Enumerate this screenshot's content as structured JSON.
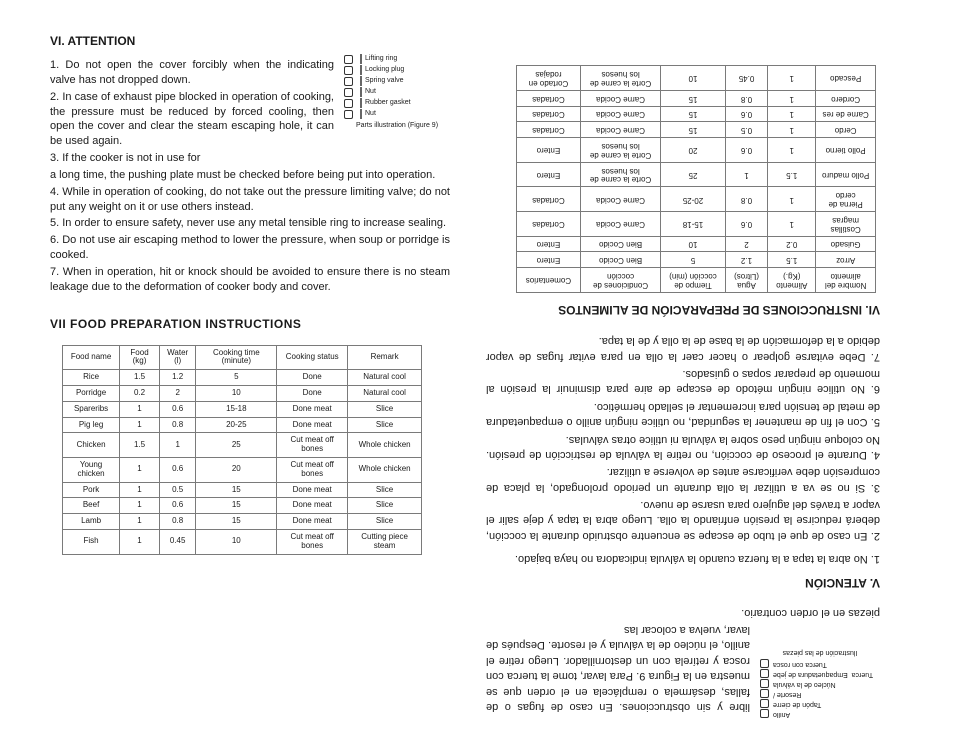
{
  "left": {
    "h6": "VI. ATTENTION",
    "p1": "1. Do not open the cover forcibly when the indicating valve has not dropped down.",
    "p2": "2. In case of exhaust pipe blocked in operation of cooking, the pressure must be reduced by forced cooling, then open the cover and clear the steam escaping hole, it can be used again.",
    "p3a": "3. If   the   cooker   is   not   in   use   for",
    "p3b": "a    long    time,    the pushing plate must be checked before being put into operation.",
    "p4": "4. While in operation of cooking, do not take out the pressure limiting valve; do not put any weight on it or use others instead.",
    "p5": "5. In order to ensure safety, never use any metal tensible ring to increase sealing.",
    "p6": "6. Do not use air escaping method to lower the pressure, when soup or porridge is cooked.",
    "p7": "7. When in operation, hit or knock should be avoided to ensure there is no steam leakage due to the deformation of cooker body and cover.",
    "h7": "VII       FOOD PREPARATION INSTRUCTIONS",
    "fig": {
      "l1": "Lifting ring",
      "l2": "Locking plug",
      "l3": "Spring valve",
      "l4": "Nut",
      "l5": "Rubber gasket",
      "l6": "Nut",
      "cap": "Parts illustration\n(Figure 9)"
    },
    "table": {
      "headers": [
        "Food name",
        "Food (kg)",
        "Water (l)",
        "Cooking time (minute)",
        "Cooking status",
        "Remark"
      ],
      "rows": [
        [
          "Rice",
          "1.5",
          "1.2",
          "5",
          "Done",
          "Natural cool"
        ],
        [
          "Porridge",
          "0.2",
          "2",
          "10",
          "Done",
          "Natural cool"
        ],
        [
          "Spareribs",
          "1",
          "0.6",
          "15-18",
          "Done meat",
          "Slice"
        ],
        [
          "Pig leg",
          "1",
          "0.8",
          "20-25",
          "Done meat",
          "Slice"
        ],
        [
          "Chicken",
          "1.5",
          "1",
          "25",
          "Cut meat off bones",
          "Whole chicken"
        ],
        [
          "Young chicken",
          "1",
          "0.6",
          "20",
          "Cut meat off bones",
          "Whole chicken"
        ],
        [
          "Pork",
          "1",
          "0.5",
          "15",
          "Done meat",
          "Slice"
        ],
        [
          "Beef",
          "1",
          "0.6",
          "15",
          "Done meat",
          "Slice"
        ],
        [
          "Lamb",
          "1",
          "0.8",
          "15",
          "Done meat",
          "Slice"
        ],
        [
          "Fish",
          "1",
          "0.45",
          "10",
          "Cut meat off bones",
          "Cutting piece steam"
        ]
      ]
    }
  },
  "right": {
    "topA": "libre y sin obstrucciones.  En caso de fugas o de fallas, desármela o remplácela en el orden que se muestra en la Figura 9. Para lavar, tome la tuerca con rosca y retírela con un destornillador. Luego retire el anillo, el núcleo de la válvula y el resorte. Después de lavar, vuelva a colocar las",
    "topB": "piezas en el orden contrario.",
    "fig": {
      "l1": "Anillo",
      "l2": "Tapón de cierre",
      "l3": "Resorte  /",
      "l4": "Núcleo de la válvula",
      "l5a": "Tuerca",
      "l5b": "Empaquetadura de jebe",
      "l6": "Tuerca con rosca",
      "cap": "Ilustración de las piezas"
    },
    "h5": "V. ATENCIÓN",
    "p1": "1. No abra la tapa a la fuerza cuando la válvula indicadora no haya bajado.",
    "p2": "2. En caso de que el tubo de escape se encuentre obstruido durante la cocción, deberá reducirse la presión enfriando la olla. Luego abra la tapa y deje salir el vapor a través del agujero para usarse de nuevo.",
    "p3": "3. Si no se va a utilizar la olla durante un periodo prolongado, la placa de compresión debe verificarse antes de volverse a utilizar.",
    "p4": "4. Durante el proceso de cocción, no retire la válvula de restricción de presión. No coloque ningún peso sobre la válvula ni utilice otras válvulas.",
    "p5": "5. Con el fin de mantener la seguridad, no utilice ningún anillo o empaquetadura de metal de tensión para incrementar el sellado hermético.",
    "p6": "6. No utilice ningún método de escape de aire para disminuir la presión al momento de preparar sopas o guisados.",
    "p7": "7. Debe evitarse golpear o hacer caer la olla en para evitar fugas de vapor debido a la deformación de la base de la olla y de la tapa.",
    "h6": "VI. INSTRUCCIONES DE PREPARACIÓN DE ALIMENTOS",
    "table": {
      "headers": [
        "Nombre del alimento",
        "Alimento (Kg.)",
        "Agua (Litros)",
        "Tiempo de cocción (min)",
        "Condiciones de cocción",
        "Comentarios"
      ],
      "rows": [
        [
          "Arroz",
          "1.5",
          "1.2",
          "5",
          "Bien Cocido",
          "Entero"
        ],
        [
          "Guisado",
          "0.2",
          "2",
          "10",
          "Bien Cocido",
          "Entero"
        ],
        [
          "Costillas magras",
          "1",
          "0.6",
          "15-18",
          "Carne Cocida",
          "Cortadas"
        ],
        [
          "Pierna de cerdo",
          "1",
          "0.8",
          "20-25",
          "Carne Cocida",
          "Cortadas"
        ],
        [
          "Pollo maduro",
          "1.5",
          "1",
          "25",
          "Corte la carne de los huesos",
          "Entero"
        ],
        [
          "Pollo tierno",
          "1",
          "0.6",
          "20",
          "Corte la carne de los huesos",
          "Entero"
        ],
        [
          "Cerdo",
          "1",
          "0.5",
          "15",
          "Carne Cocida",
          "Cortadas"
        ],
        [
          "Carne de res",
          "1",
          "0.6",
          "15",
          "Carne Cocida",
          "Cortadas"
        ],
        [
          "Cordero",
          "1",
          "0.8",
          "15",
          "Carne Cocida",
          "Cortadas"
        ],
        [
          "Pescado",
          "1",
          "0.45",
          "10",
          "Corte la carne de los huesos",
          "Cortado en rodajas"
        ]
      ]
    }
  }
}
